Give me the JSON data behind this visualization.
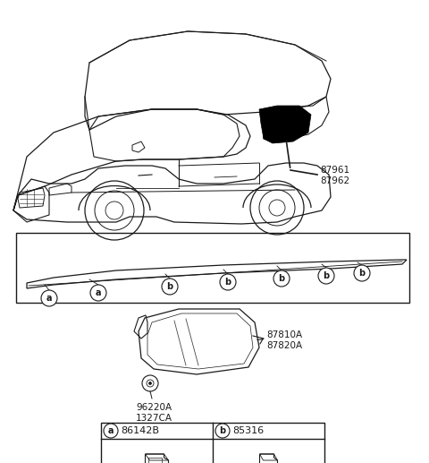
{
  "bg_color": "#ffffff",
  "line_color": "#1a1a1a",
  "label_87961": "87961",
  "label_87962": "87962",
  "label_87810A": "87810A",
  "label_87820A": "87820A",
  "label_96220A": "96220A",
  "label_1327CA": "1327CA",
  "label_86142B": "86142B",
  "label_85316": "85316",
  "label_a": "a",
  "label_b": "b"
}
